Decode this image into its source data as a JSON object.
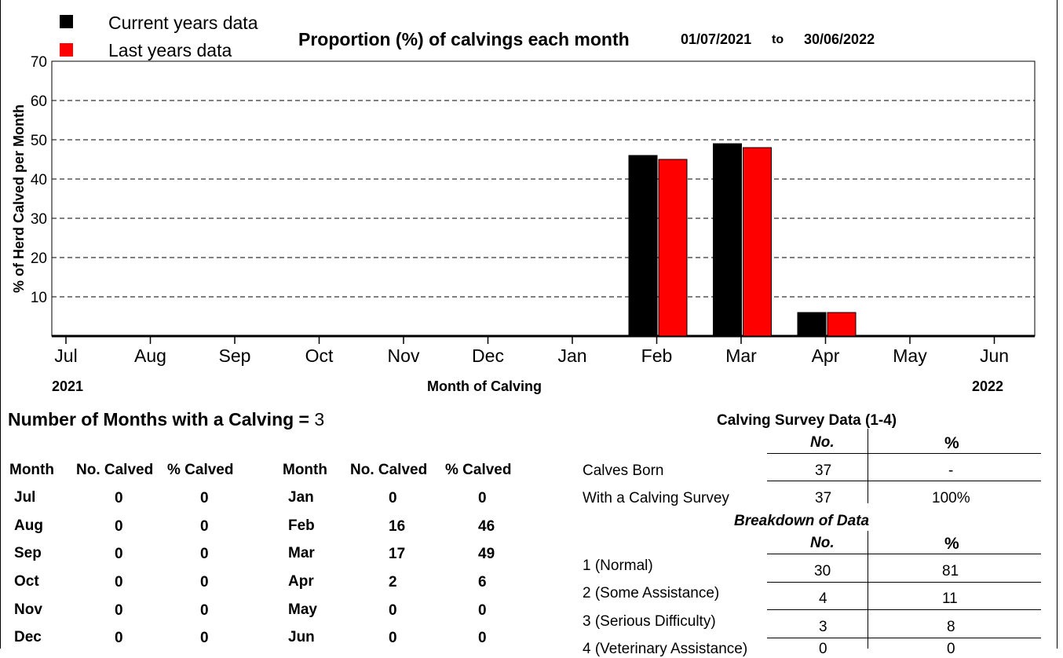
{
  "legend": [
    {
      "label": "Current years data",
      "color": "#000000"
    },
    {
      "label": "Last years data",
      "color": "#ff0000"
    }
  ],
  "header": {
    "title": "Proportion (%) of calvings each month",
    "date_from": "01/07/2021",
    "to_word": "to",
    "date_to": "30/06/2022"
  },
  "chart_data": {
    "type": "bar",
    "title": "Proportion (%) of calvings each month",
    "xlabel": "Month of Calving",
    "ylabel": "% of Herd Calved per Month",
    "categories": [
      "Jul",
      "Aug",
      "Sep",
      "Oct",
      "Nov",
      "Dec",
      "Jan",
      "Feb",
      "Mar",
      "Apr",
      "May",
      "Jun"
    ],
    "series": [
      {
        "name": "Current years data",
        "color": "#000000",
        "values": [
          0,
          0,
          0,
          0,
          0,
          0,
          0,
          46,
          49,
          6,
          0,
          0
        ]
      },
      {
        "name": "Last years data",
        "color": "#ff0000",
        "values": [
          0,
          0,
          0,
          0,
          0,
          0,
          0,
          45,
          48,
          6,
          0,
          0
        ]
      }
    ],
    "ylim": [
      0,
      70
    ],
    "yticks": [
      "10",
      "20",
      "30",
      "40",
      "50",
      "60",
      "70"
    ],
    "year_start": "2021",
    "year_end": "2022",
    "grid": "horizontal dashed",
    "legend_position": "top-left"
  },
  "summary": {
    "label": "Number of Months with a Calving =",
    "value": "3"
  },
  "month_table": {
    "headers": [
      "Month",
      "No. Calved",
      "% Calved"
    ],
    "left": [
      {
        "month": "Jul",
        "no": "0",
        "pct": "0"
      },
      {
        "month": "Aug",
        "no": "0",
        "pct": "0"
      },
      {
        "month": "Sep",
        "no": "0",
        "pct": "0"
      },
      {
        "month": "Oct",
        "no": "0",
        "pct": "0"
      },
      {
        "month": "Nov",
        "no": "0",
        "pct": "0"
      },
      {
        "month": "Dec",
        "no": "0",
        "pct": "0"
      }
    ],
    "right": [
      {
        "month": "Jan",
        "no": "0",
        "pct": "0"
      },
      {
        "month": "Feb",
        "no": "16",
        "pct": "46"
      },
      {
        "month": "Mar",
        "no": "17",
        "pct": "49"
      },
      {
        "month": "Apr",
        "no": "2",
        "pct": "6"
      },
      {
        "month": "May",
        "no": "0",
        "pct": "0"
      },
      {
        "month": "Jun",
        "no": "0",
        "pct": "0"
      }
    ]
  },
  "survey": {
    "title": "Calving Survey Data (1-4)",
    "col_no": "No.",
    "col_pct": "%",
    "rows": [
      {
        "label": "Calves Born",
        "no": "37",
        "pct": "-"
      },
      {
        "label": "With a Calving Survey",
        "no": "37",
        "pct": "100%"
      }
    ],
    "breakdown_title": "Breakdown of Data",
    "breakdown": [
      {
        "label": "1 (Normal)",
        "no": "30",
        "pct": "81"
      },
      {
        "label": "2 (Some Assistance)",
        "no": "4",
        "pct": "11"
      },
      {
        "label": "3 (Serious Difficulty)",
        "no": "3",
        "pct": "8"
      },
      {
        "label": "4 (Veterinary Assistance)",
        "no": "0",
        "pct": "0"
      }
    ]
  }
}
